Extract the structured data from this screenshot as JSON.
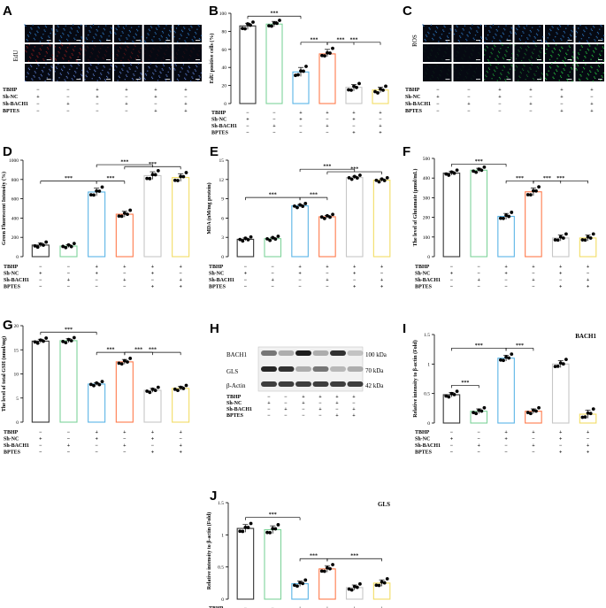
{
  "colors": {
    "ctrl": "#333333",
    "shnc": "#7fd39a",
    "tbhp": "#5ab4e6",
    "bach": "#ff7a4c",
    "b1": "#c6c6c6",
    "b2": "#f2dd64",
    "edu_blue": "#2b6fb5",
    "edu_red": "#8a1e1e",
    "ros_green": "#23b23c",
    "dark_tile": "#060912"
  },
  "condition_rows": [
    "TBHP",
    "Sh-NC",
    "Sh-BACH1",
    "BPTES"
  ],
  "condition_matrix": [
    [
      "−",
      "−",
      "+",
      "+",
      "+",
      "+"
    ],
    [
      "+",
      "−",
      "+",
      "−",
      "+",
      "−"
    ],
    [
      "−",
      "+",
      "−",
      "+",
      "−",
      "+"
    ],
    [
      "−",
      "−",
      "−",
      "−",
      "+",
      "+"
    ]
  ],
  "sig_label": "***",
  "panels": {
    "A": {
      "label": "A",
      "stain": "EdU"
    },
    "C": {
      "label": "C",
      "stain": "ROS"
    },
    "H": {
      "label": "H",
      "bands": [
        "BACH1",
        "GLS",
        "β-Actin"
      ],
      "sizes": [
        "100 kDa",
        "70 kDa",
        "42 kDa"
      ]
    }
  },
  "chart_data": [
    {
      "panel": "B",
      "type": "bar",
      "ylabel": "EdU positive cells (%)",
      "ylim": [
        0,
        100
      ],
      "ticks": [
        0,
        20,
        40,
        60,
        80,
        100
      ],
      "values": [
        86,
        88,
        35,
        55,
        18,
        15
      ],
      "points": [
        [
          82,
          84,
          87,
          88,
          89
        ],
        [
          85,
          87,
          88,
          90,
          91
        ],
        [
          30,
          33,
          35,
          37,
          40
        ],
        [
          52,
          54,
          55,
          57,
          60
        ],
        [
          14,
          16,
          18,
          19,
          21
        ],
        [
          12,
          13,
          15,
          16,
          18
        ]
      ],
      "sig": [
        [
          0,
          2
        ],
        [
          2,
          3
        ],
        [
          3,
          4
        ],
        [
          3,
          5
        ]
      ]
    },
    {
      "panel": "D",
      "type": "bar",
      "ylabel": "Green Fluorescent Intensity (%)",
      "ylim": [
        0,
        1000
      ],
      "ticks": [
        0,
        200,
        400,
        600,
        800,
        1000
      ],
      "values": [
        120,
        110,
        670,
        440,
        840,
        820
      ],
      "points": [
        [
          100,
          110,
          120,
          130,
          140
        ],
        [
          95,
          105,
          110,
          115,
          125
        ],
        [
          630,
          650,
          670,
          690,
          710
        ],
        [
          410,
          430,
          440,
          450,
          470
        ],
        [
          800,
          820,
          840,
          860,
          880
        ],
        [
          780,
          800,
          820,
          840,
          860
        ]
      ],
      "sig": [
        [
          0,
          2
        ],
        [
          2,
          3
        ],
        [
          2,
          4
        ],
        [
          3,
          5
        ]
      ]
    },
    {
      "panel": "E",
      "type": "bar",
      "ylabel": "MDA (nM/mg protein)",
      "ylim": [
        0,
        15
      ],
      "ticks": [
        0,
        3,
        6,
        9,
        12,
        15
      ],
      "values": [
        2.7,
        2.8,
        7.9,
        6.2,
        12.3,
        11.9
      ],
      "points": [
        [
          2.5,
          2.6,
          2.7,
          2.8,
          2.9
        ],
        [
          2.6,
          2.7,
          2.8,
          2.9,
          3.0
        ],
        [
          7.7,
          7.8,
          7.9,
          8.0,
          8.1
        ],
        [
          6.0,
          6.1,
          6.2,
          6.3,
          6.4
        ],
        [
          12.1,
          12.2,
          12.3,
          12.4,
          12.5
        ],
        [
          11.7,
          11.8,
          11.9,
          12.0,
          12.1
        ]
      ],
      "sig": [
        [
          0,
          2
        ],
        [
          2,
          3
        ],
        [
          2,
          4
        ],
        [
          3,
          5
        ]
      ]
    },
    {
      "panel": "F",
      "type": "bar",
      "ylabel": "The level of Glutamate (μmol/mL)",
      "ylim": [
        0,
        500
      ],
      "ticks": [
        0,
        100,
        200,
        300,
        400,
        500
      ],
      "values": [
        425,
        440,
        205,
        330,
        95,
        95
      ],
      "points": [
        [
          415,
          420,
          425,
          430,
          435
        ],
        [
          430,
          435,
          440,
          445,
          450
        ],
        [
          190,
          200,
          205,
          210,
          220
        ],
        [
          310,
          320,
          330,
          340,
          350
        ],
        [
          80,
          90,
          95,
          100,
          110
        ],
        [
          80,
          90,
          95,
          100,
          110
        ]
      ],
      "sig": [
        [
          0,
          2
        ],
        [
          2,
          3
        ],
        [
          3,
          4
        ],
        [
          3,
          5
        ]
      ]
    },
    {
      "panel": "G",
      "type": "bar",
      "ylabel": "The level of total GSH (nmol/mg)",
      "ylim": [
        0,
        20
      ],
      "ticks": [
        0,
        5,
        10,
        15,
        20
      ],
      "values": [
        16.8,
        16.9,
        7.9,
        12.5,
        6.6,
        7.0
      ],
      "points": [
        [
          16.4,
          16.6,
          16.8,
          17.0,
          17.2
        ],
        [
          16.5,
          16.7,
          16.9,
          17.1,
          17.3
        ],
        [
          7.6,
          7.8,
          7.9,
          8.0,
          8.2
        ],
        [
          12.0,
          12.3,
          12.5,
          12.7,
          13.0
        ],
        [
          6.2,
          6.4,
          6.6,
          6.8,
          7.0
        ],
        [
          6.6,
          6.8,
          7.0,
          7.2,
          7.4
        ]
      ],
      "sig": [
        [
          0,
          2
        ],
        [
          2,
          3
        ],
        [
          3,
          4
        ],
        [
          3,
          5
        ]
      ]
    },
    {
      "panel": "I",
      "type": "bar",
      "title": "BACH1",
      "ylabel": "Relative intensity to β-actin (Fold)",
      "ylim": [
        0,
        1.5
      ],
      "ticks": [
        0,
        0.5,
        1.0,
        1.5
      ],
      "values": [
        0.48,
        0.2,
        1.1,
        0.2,
        1.0,
        0.15
      ],
      "points": [
        [
          0.44,
          0.46,
          0.48,
          0.5,
          0.52
        ],
        [
          0.16,
          0.18,
          0.2,
          0.22,
          0.24
        ],
        [
          1.05,
          1.08,
          1.1,
          1.12,
          1.15
        ],
        [
          0.16,
          0.18,
          0.2,
          0.22,
          0.24
        ],
        [
          0.94,
          0.98,
          1.0,
          1.02,
          1.06
        ],
        [
          0.08,
          0.12,
          0.15,
          0.18,
          0.22
        ]
      ],
      "sig": [
        [
          0,
          1
        ],
        [
          0,
          2
        ],
        [
          2,
          3
        ]
      ]
    },
    {
      "panel": "J",
      "type": "bar",
      "title": "GLS",
      "ylabel": "Relative intensity to β-actin (Fold)",
      "ylim": [
        0,
        1.5
      ],
      "ticks": [
        0,
        0.5,
        1.0,
        1.5
      ],
      "values": [
        1.1,
        1.08,
        0.24,
        0.47,
        0.18,
        0.25
      ],
      "points": [
        [
          1.04,
          1.07,
          1.1,
          1.13,
          1.16
        ],
        [
          1.02,
          1.05,
          1.08,
          1.11,
          1.14
        ],
        [
          0.2,
          0.22,
          0.24,
          0.26,
          0.28
        ],
        [
          0.42,
          0.45,
          0.47,
          0.49,
          0.52
        ],
        [
          0.14,
          0.16,
          0.18,
          0.2,
          0.22
        ],
        [
          0.2,
          0.23,
          0.25,
          0.27,
          0.3
        ]
      ],
      "sig": [
        [
          0,
          2
        ],
        [
          2,
          3
        ],
        [
          3,
          5
        ]
      ]
    }
  ]
}
